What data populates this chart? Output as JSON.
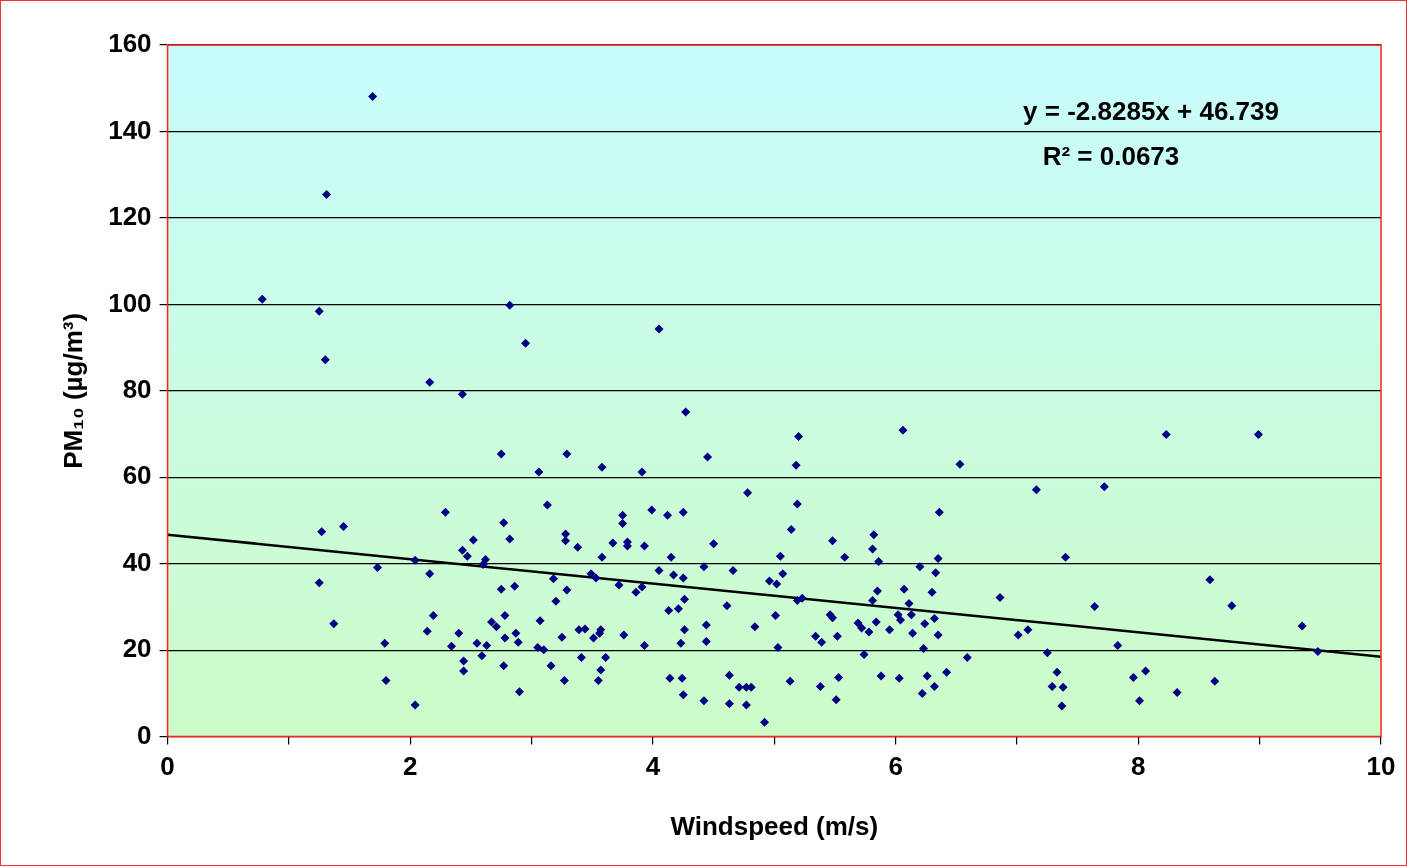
{
  "chart_data": {
    "type": "scatter",
    "xlabel": "Windspeed (m/s)",
    "ylabel": "PM₁₀ (µg/m³)",
    "xlim": [
      0,
      10
    ],
    "xticks": [
      0,
      {
        "value": 1,
        "label": null
      },
      2,
      {
        "value": 3,
        "label": null
      },
      4,
      {
        "value": 5,
        "label": null
      },
      6,
      {
        "value": 7,
        "label": null
      },
      8,
      {
        "value": 9,
        "label": null
      },
      10
    ],
    "ylim": [
      0,
      160
    ],
    "yticks": [
      0,
      20,
      40,
      60,
      80,
      100,
      120,
      140,
      160
    ],
    "grid": "y",
    "legend": false,
    "marker": "diamond",
    "annotations": [
      "y = -2.8285x + 46.739",
      "R² = 0.0673"
    ],
    "series": [
      {
        "type": "scatter",
        "color": "#000080",
        "x": [
          0.78,
          1.25,
          1.3,
          1.31,
          1.69,
          1.25,
          1.27,
          1.37,
          1.45,
          1.73,
          1.79,
          1.8,
          2.04,
          2.04,
          2.16,
          2.16,
          2.19,
          2.14,
          2.29,
          2.34,
          2.4,
          2.43,
          2.43,
          2.44,
          2.44,
          2.47,
          2.52,
          2.55,
          2.59,
          2.6,
          2.62,
          2.63,
          2.67,
          2.71,
          2.75,
          2.75,
          2.78,
          2.77,
          2.78,
          2.77,
          2.82,
          2.82,
          2.86,
          2.87,
          2.89,
          2.9,
          2.95,
          3.06,
          3.07,
          3.05,
          3.1,
          3.13,
          3.16,
          3.18,
          3.2,
          3.25,
          3.28,
          3.28,
          3.29,
          3.27,
          3.29,
          3.38,
          3.39,
          3.41,
          3.44,
          3.49,
          3.51,
          3.53,
          3.57,
          3.55,
          3.57,
          3.56,
          3.58,
          3.58,
          3.61,
          3.67,
          3.72,
          3.75,
          3.75,
          3.76,
          3.79,
          3.79,
          3.86,
          3.91,
          3.91,
          3.93,
          3.93,
          3.99,
          4.05,
          4.05,
          4.12,
          4.13,
          4.14,
          4.15,
          4.17,
          4.21,
          4.23,
          4.24,
          4.25,
          4.25,
          4.27,
          4.26,
          4.26,
          4.25,
          4.42,
          4.42,
          4.44,
          4.45,
          4.44,
          4.5,
          4.61,
          4.63,
          4.63,
          4.66,
          4.71,
          4.77,
          4.77,
          4.81,
          4.78,
          4.84,
          4.92,
          4.96,
          5.01,
          5.02,
          5.03,
          5.05,
          5.07,
          5.13,
          5.14,
          5.18,
          5.19,
          5.2,
          5.19,
          5.23,
          6.06,
          5.48,
          5.58,
          5.82,
          5.86,
          5.81,
          6.2,
          6.35,
          6.33,
          6.36,
          6.53,
          6.07,
          6.3,
          6.11,
          5.85,
          5.81,
          5.46,
          5.48,
          6.02,
          6.04,
          6.13,
          6.32,
          6.24,
          5.69,
          5.72,
          5.78,
          5.84,
          5.95,
          5.52,
          5.34,
          5.39,
          6.14,
          6.35,
          6.23,
          5.74,
          6.59,
          6.86,
          7.01,
          7.09,
          7.25,
          7.33,
          7.29,
          7.38,
          7.37,
          7.4,
          7.16,
          7.72,
          7.64,
          5.53,
          5.38,
          5.51,
          5.88,
          6.03,
          6.26,
          6.42,
          6.22,
          6.32,
          8.23,
          8.99,
          8.59,
          8.77,
          9.35,
          9.48,
          7.83,
          7.96,
          8.06,
          8.01,
          8.32,
          8.63
        ],
        "values": [
          101.2,
          98.4,
          87.2,
          125.4,
          148.1,
          35.6,
          47.4,
          26.1,
          48.6,
          39.1,
          21.6,
          13.0,
          7.3,
          40.8,
          82.0,
          37.7,
          28.0,
          24.4,
          51.9,
          20.9,
          23.9,
          79.2,
          43.1,
          17.5,
          15.2,
          41.7,
          45.5,
          21.6,
          18.7,
          39.8,
          41.0,
          21.1,
          26.5,
          25.4,
          65.4,
          34.1,
          28.0,
          49.5,
          22.8,
          16.4,
          99.8,
          45.7,
          34.8,
          23.9,
          21.8,
          10.4,
          91.0,
          61.2,
          26.8,
          20.6,
          20.1,
          53.6,
          16.4,
          36.5,
          31.3,
          23.0,
          46.9,
          45.3,
          65.4,
          13.0,
          33.9,
          43.8,
          24.7,
          18.3,
          24.9,
          37.7,
          22.8,
          36.7,
          15.4,
          13.0,
          24.7,
          23.9,
          41.5,
          62.3,
          18.3,
          44.8,
          35.1,
          49.3,
          51.2,
          23.5,
          45.0,
          44.1,
          33.4,
          61.2,
          34.6,
          21.1,
          44.1,
          52.4,
          94.3,
          38.4,
          51.2,
          29.2,
          13.5,
          41.5,
          37.4,
          29.6,
          21.6,
          13.5,
          51.9,
          36.7,
          75.1,
          24.7,
          31.8,
          9.7,
          39.3,
          8.3,
          25.8,
          64.7,
          22.0,
          44.6,
          30.3,
          14.2,
          7.6,
          38.4,
          11.4,
          11.4,
          7.3,
          11.4,
          56.4,
          25.4,
          3.3,
          36.0,
          28.0,
          35.3,
          20.6,
          41.7,
          37.7,
          12.8,
          47.9,
          62.8,
          53.8,
          69.4,
          31.5,
          32.0,
          70.9,
          45.3,
          41.5,
          46.7,
          40.5,
          43.4,
          39.3,
          41.2,
          37.9,
          51.9,
          63.0,
          34.1,
          33.4,
          30.8,
          33.7,
          31.5,
          28.2,
          27.5,
          28.2,
          27.0,
          28.2,
          27.3,
          26.1,
          26.3,
          25.1,
          24.2,
          26.5,
          24.7,
          23.2,
          23.2,
          21.8,
          23.9,
          23.5,
          20.4,
          19.0,
          18.3,
          32.2,
          23.5,
          24.7,
          19.4,
          14.9,
          11.6,
          11.4,
          7.1,
          41.5,
          57.1,
          57.8,
          30.1,
          13.7,
          11.6,
          8.5,
          14.0,
          13.5,
          14.0,
          14.9,
          10.0,
          11.6,
          69.9,
          69.9,
          36.3,
          30.3,
          25.6,
          19.7,
          21.1,
          13.7,
          15.2,
          8.3,
          10.2,
          12.8
        ]
      },
      {
        "type": "line",
        "color": "#000000",
        "marker": "none",
        "line_style": "solid",
        "x": [
          0,
          10
        ],
        "values": [
          46.7,
          18.5
        ]
      }
    ]
  }
}
